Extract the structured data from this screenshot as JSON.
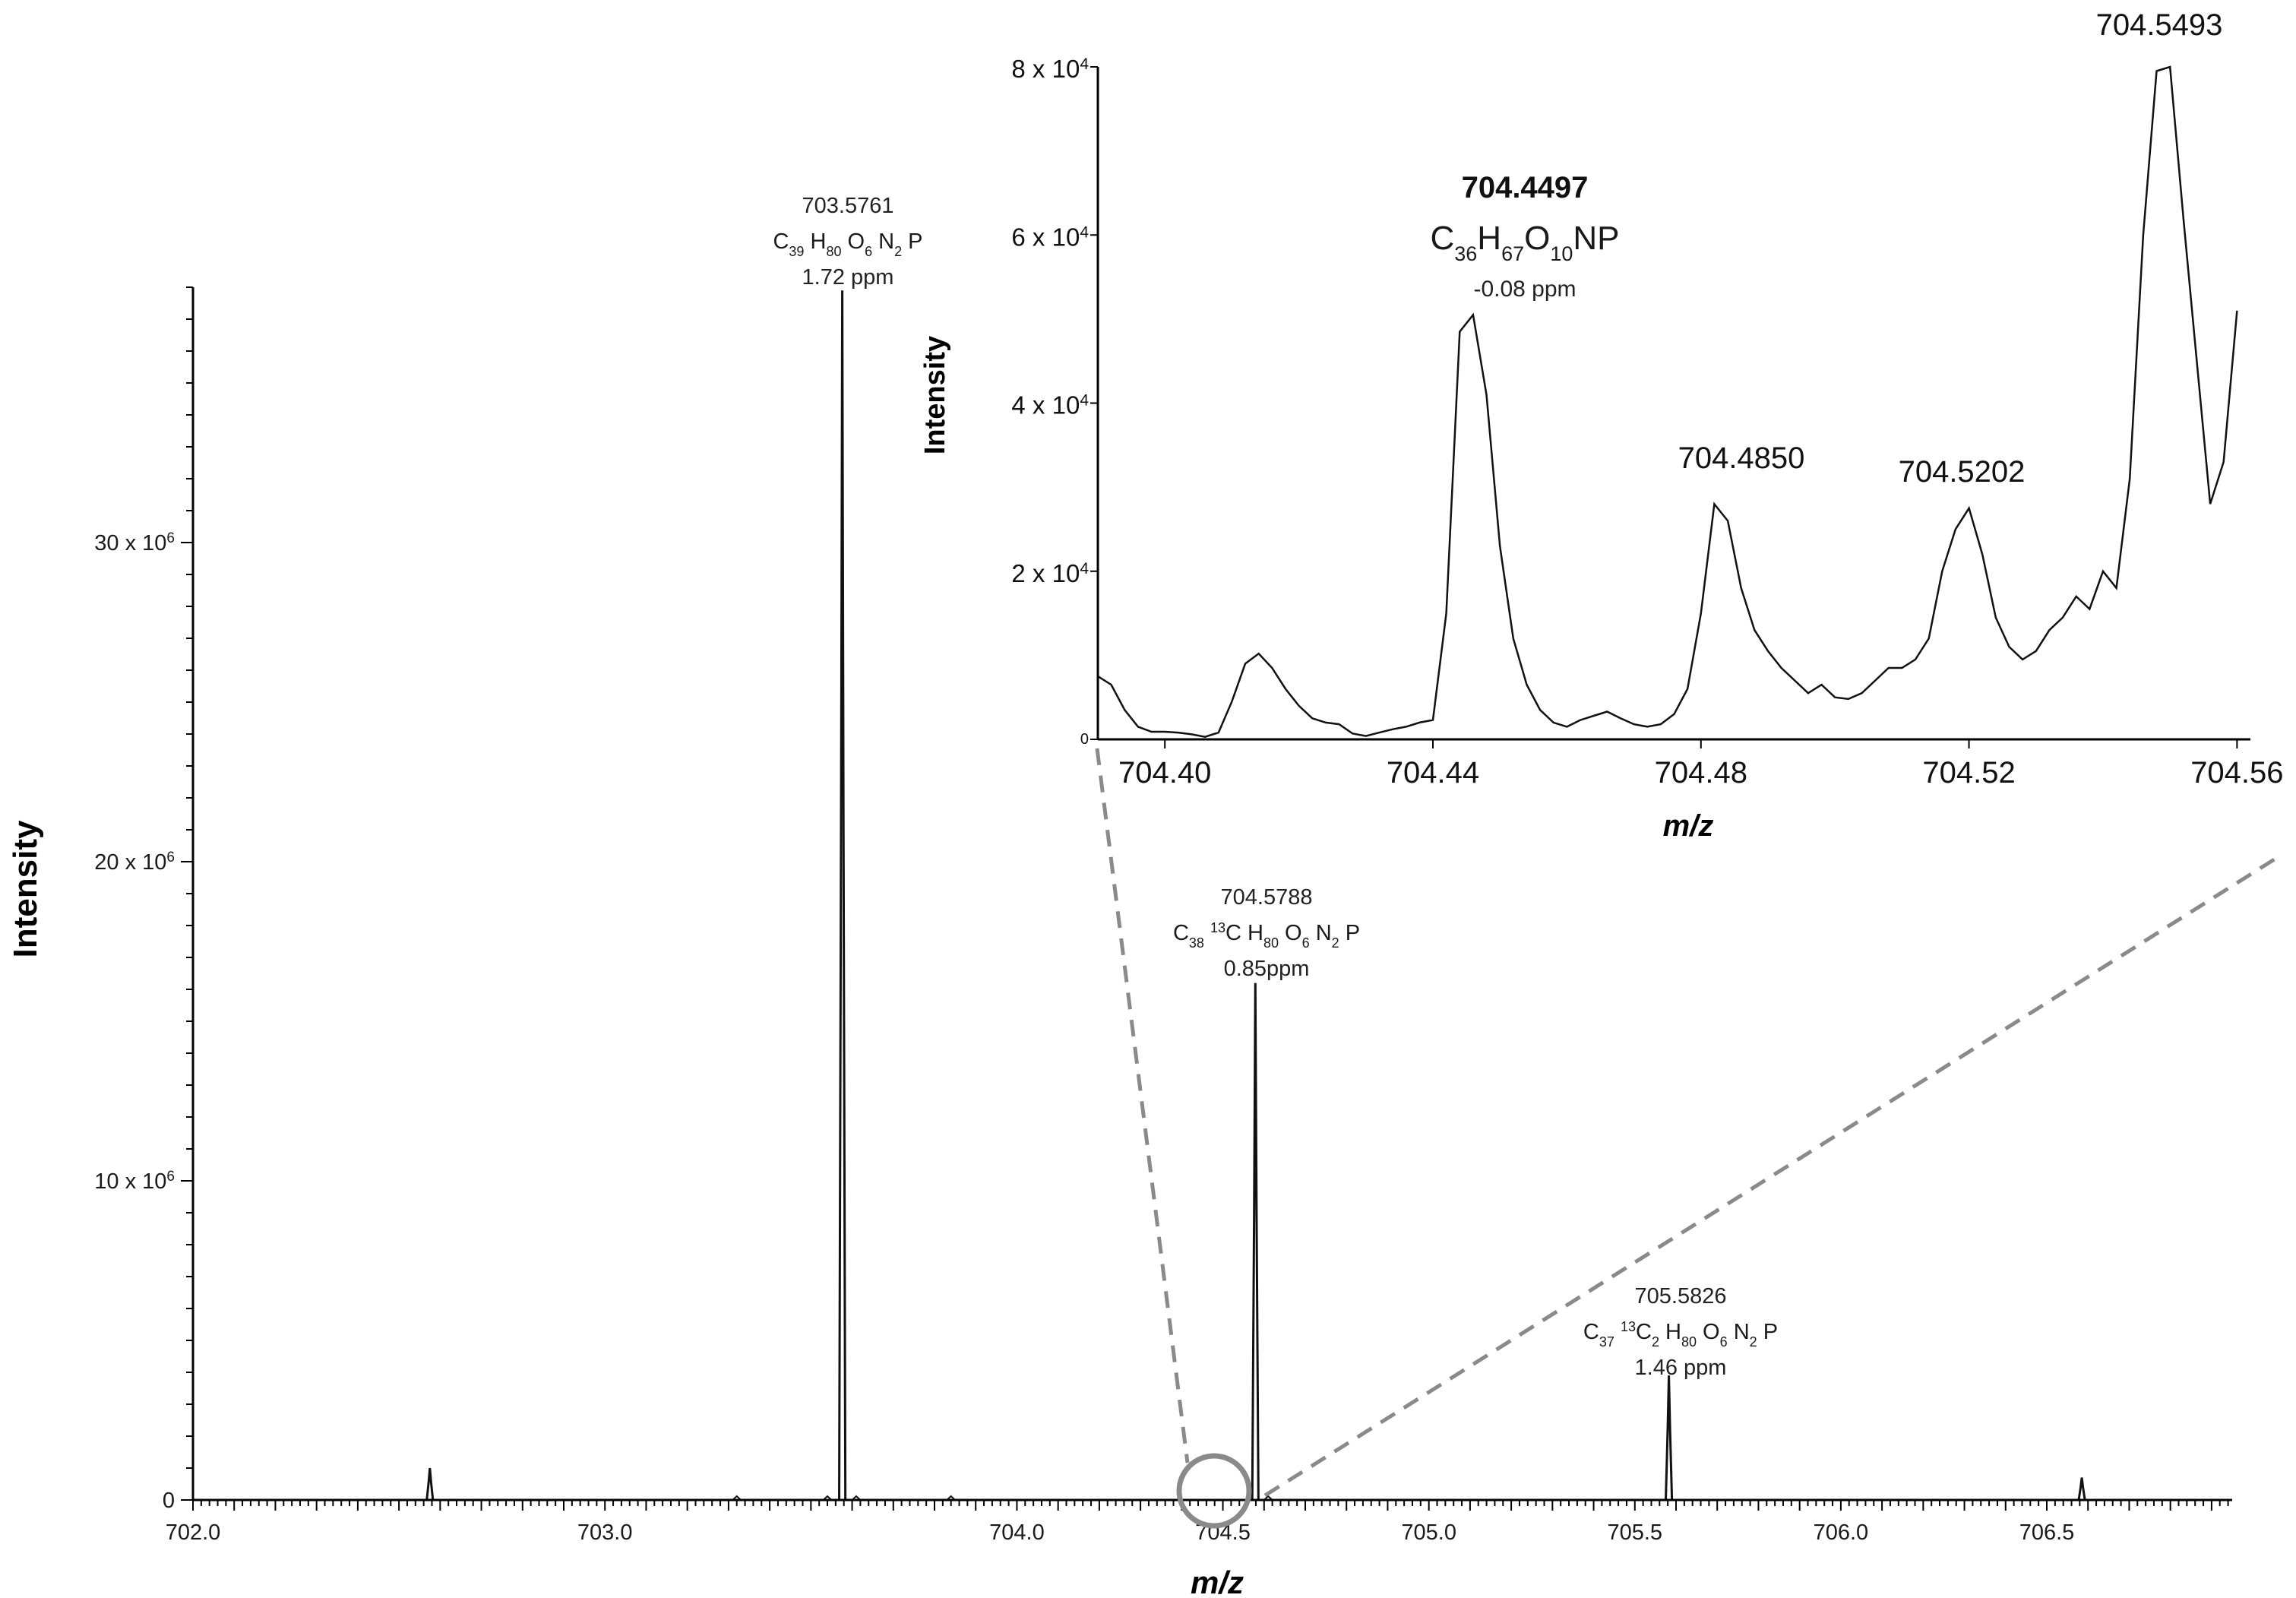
{
  "chart_data": [
    {
      "id": "main",
      "type": "line",
      "xlabel": "m/z",
      "ylabel": "Intensity",
      "xlim": [
        702.0,
        706.95
      ],
      "ylim": [
        0,
        38000000
      ],
      "x_ticks": [
        702.0,
        703.0,
        704.0,
        704.5,
        705.0,
        705.5,
        706.0,
        706.5
      ],
      "x_tick_labels": [
        "702.0",
        "703.0",
        "704.0",
        "704.5",
        "705.0",
        "705.5",
        "706.0",
        "706.5"
      ],
      "y_ticks": [
        0,
        10000000,
        20000000,
        30000000
      ],
      "y_tick_labels": [
        {
          "mantissa": "0",
          "exponent": ""
        },
        {
          "mantissa": "10 x 10",
          "exponent": "6"
        },
        {
          "mantissa": "20 x 10",
          "exponent": "6"
        },
        {
          "mantissa": "30 x 10",
          "exponent": "6"
        }
      ],
      "peaks": [
        {
          "mz": 702.575,
          "intensity": 1000000
        },
        {
          "mz": 703.5761,
          "intensity": 37900000
        },
        {
          "mz": 704.5788,
          "intensity": 16200000
        },
        {
          "mz": 705.5826,
          "intensity": 3900000
        },
        {
          "mz": 706.585,
          "intensity": 700000
        }
      ],
      "annotations": [
        {
          "mz": "703.5761",
          "formula": [
            [
              "C",
              ""
            ],
            [
              "39",
              "sub"
            ],
            [
              " H",
              ""
            ],
            [
              "80",
              "sub"
            ],
            [
              " O",
              ""
            ],
            [
              "6",
              "sub"
            ],
            [
              " N",
              ""
            ],
            [
              "2",
              "sub"
            ],
            [
              " P",
              ""
            ]
          ],
          "ppm": "1.72 ppm"
        },
        {
          "mz": "704.5788",
          "formula": [
            [
              "C",
              ""
            ],
            [
              "38",
              "sub"
            ],
            [
              " ",
              ""
            ],
            [
              "13",
              "sup"
            ],
            [
              "C H",
              ""
            ],
            [
              "80",
              "sub"
            ],
            [
              " O",
              ""
            ],
            [
              "6",
              "sub"
            ],
            [
              " N",
              ""
            ],
            [
              "2",
              "sub"
            ],
            [
              " P",
              ""
            ]
          ],
          "ppm": "0.85ppm"
        },
        {
          "mz": "705.5826",
          "formula": [
            [
              "C",
              ""
            ],
            [
              "37",
              "sub"
            ],
            [
              " ",
              ""
            ],
            [
              "13",
              "sup"
            ],
            [
              "C",
              ""
            ],
            [
              "2",
              "sub"
            ],
            [
              " H",
              ""
            ],
            [
              "80",
              "sub"
            ],
            [
              " O",
              ""
            ],
            [
              "6",
              "sub"
            ],
            [
              " N",
              ""
            ],
            [
              "2",
              "sub"
            ],
            [
              " P",
              ""
            ]
          ],
          "ppm": "1.46 ppm"
        }
      ],
      "zoom_circle_mz": 704.45
    },
    {
      "id": "inset",
      "type": "line",
      "xlabel": "m/z",
      "ylabel": "Intensity",
      "xlim": [
        704.39,
        704.562
      ],
      "ylim": [
        0,
        80000
      ],
      "x_ticks": [
        704.4,
        704.44,
        704.48,
        704.52,
        704.56
      ],
      "x_tick_labels": [
        "704.40",
        "704.44",
        "704.48",
        "704.52",
        "704.56"
      ],
      "y_ticks": [
        0,
        20000,
        40000,
        60000,
        80000
      ],
      "y_tick_labels": [
        {
          "mantissa": "0",
          "exponent": ""
        },
        {
          "mantissa": "2 x 10",
          "exponent": "4"
        },
        {
          "mantissa": "4 x 10",
          "exponent": "4"
        },
        {
          "mantissa": "6 x 10",
          "exponent": "4"
        },
        {
          "mantissa": "8 x 10",
          "exponent": "4"
        }
      ],
      "x": [
        704.39,
        704.392,
        704.394,
        704.396,
        704.398,
        704.4,
        704.402,
        704.404,
        704.406,
        704.408,
        704.41,
        704.412,
        704.414,
        704.416,
        704.418,
        704.42,
        704.422,
        704.424,
        704.426,
        704.428,
        704.43,
        704.432,
        704.434,
        704.436,
        704.438,
        704.44,
        704.442,
        704.444,
        704.446,
        704.448,
        704.45,
        704.452,
        704.454,
        704.456,
        704.458,
        704.46,
        704.462,
        704.464,
        704.466,
        704.468,
        704.47,
        704.472,
        704.474,
        704.476,
        704.478,
        704.48,
        704.482,
        704.484,
        704.486,
        704.488,
        704.49,
        704.492,
        704.494,
        704.496,
        704.498,
        704.5,
        704.502,
        704.504,
        704.506,
        704.508,
        704.51,
        704.512,
        704.514,
        704.516,
        704.518,
        704.52,
        704.522,
        704.524,
        704.526,
        704.528,
        704.53,
        704.532,
        704.534,
        704.536,
        704.538,
        704.54,
        704.542,
        704.544,
        704.546,
        704.548,
        704.55,
        704.552,
        704.554,
        704.556,
        704.558,
        704.56
      ],
      "y": [
        7500,
        6500,
        3500,
        1500,
        900,
        900,
        800,
        600,
        300,
        800,
        4500,
        9000,
        10200,
        8500,
        6000,
        4000,
        2500,
        2000,
        1800,
        700,
        400,
        800,
        1200,
        1500,
        2000,
        2300,
        15000,
        48500,
        50500,
        41000,
        23000,
        12000,
        6500,
        3500,
        2000,
        1500,
        2300,
        2800,
        3300,
        2500,
        1800,
        1500,
        1800,
        3000,
        6000,
        15000,
        28000,
        26000,
        18000,
        13000,
        10500,
        8500,
        7000,
        5500,
        6500,
        5000,
        4800,
        5500,
        7000,
        8500,
        8500,
        9500,
        12000,
        20000,
        25000,
        27500,
        22000,
        14500,
        11000,
        9500,
        10500,
        13000,
        14500,
        17000,
        15500,
        20000,
        18000,
        31000,
        60000,
        79500,
        80000,
        62000,
        45000,
        28000,
        33000,
        51000
      ],
      "peak_labels": [
        {
          "text": "704.4497",
          "formula": [
            [
              "C",
              ""
            ],
            [
              "36",
              "sub"
            ],
            [
              "H",
              ""
            ],
            [
              "67",
              "sub"
            ],
            [
              "O",
              ""
            ],
            [
              "10",
              "sub"
            ],
            [
              "NP",
              ""
            ]
          ],
          "ppm": "-0.08 ppm",
          "bold": true,
          "mz": 704.4497
        },
        {
          "text": "704.4850",
          "mz": 704.485
        },
        {
          "text": "704.5202",
          "mz": 704.5202
        },
        {
          "text": "704.5493",
          "mz": 704.5493
        }
      ]
    }
  ]
}
